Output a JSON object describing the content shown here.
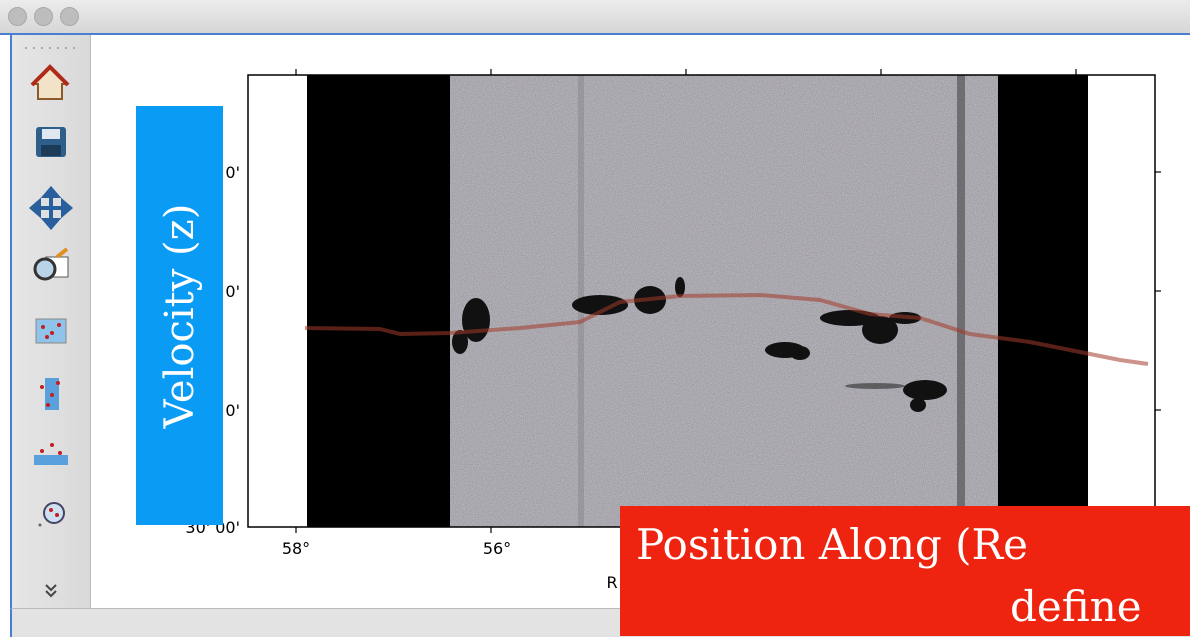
{
  "plot": {
    "x_tick_labels": [
      "58°",
      "56°"
    ],
    "y_tick_labels": [
      "0'",
      "0'",
      "0'",
      "30' 00'"
    ],
    "x_axis_label": "R"
  },
  "overlays": {
    "velocity_label": "Velocity (z)",
    "position_label": [
      "Position Along (Re",
      "define"
    ]
  }
}
